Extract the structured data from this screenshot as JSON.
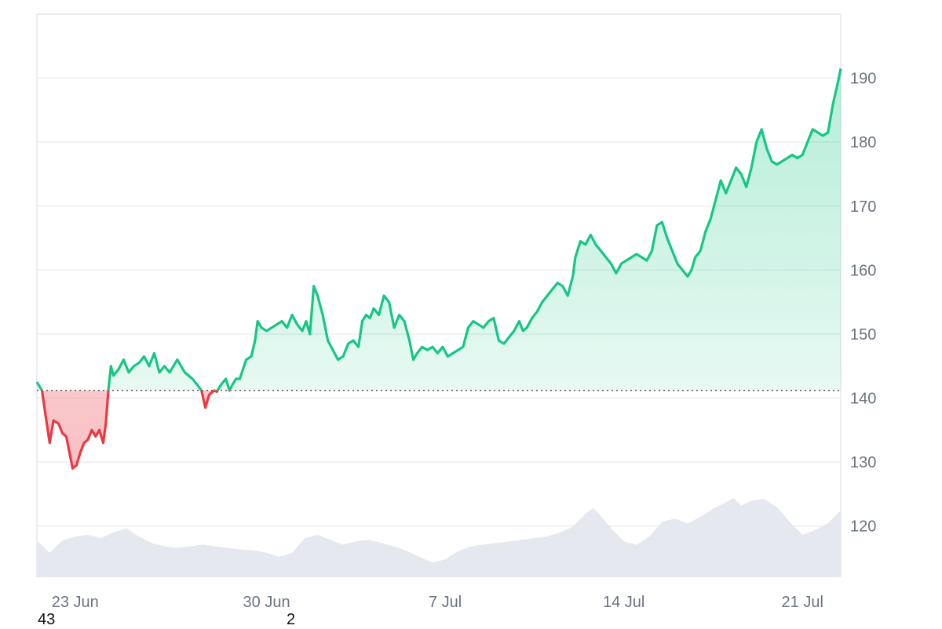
{
  "chart_data": {
    "type": "area",
    "title": "",
    "xlabel": "",
    "ylabel": "",
    "x_start": "21 Jun",
    "x_end": "21 Jul",
    "x_ticks": [
      {
        "label": "23 Jun",
        "day": 1.5
      },
      {
        "label": "30 Jun",
        "day": 9.0
      },
      {
        "label": "7 Jul",
        "day": 16.0
      },
      {
        "label": "14 Jul",
        "day": 23.0
      },
      {
        "label": "21 Jul",
        "day": 30.0
      }
    ],
    "y_ticks": [
      120,
      130,
      140,
      150,
      160,
      170,
      180,
      190
    ],
    "ylim": [
      112,
      200
    ],
    "baseline": 141.2,
    "grid": true,
    "up_color": "#16c784",
    "down_color": "#ea3943",
    "volume_color": "#e5e9ef",
    "series": [
      {
        "values": [
          [
            0.0,
            142.5
          ],
          [
            0.2,
            141.2
          ],
          [
            0.35,
            137
          ],
          [
            0.5,
            133
          ],
          [
            0.65,
            136.5
          ],
          [
            0.85,
            136
          ],
          [
            1.0,
            134.5
          ],
          [
            1.15,
            134
          ],
          [
            1.3,
            131
          ],
          [
            1.4,
            129
          ],
          [
            1.55,
            129.5
          ],
          [
            1.7,
            131.5
          ],
          [
            1.85,
            133
          ],
          [
            2.0,
            133.5
          ],
          [
            2.15,
            135
          ],
          [
            2.3,
            134
          ],
          [
            2.45,
            135
          ],
          [
            2.6,
            133
          ],
          [
            2.7,
            136
          ],
          [
            2.8,
            141.2
          ],
          [
            2.9,
            145
          ],
          [
            3.0,
            143.5
          ],
          [
            3.2,
            144.5
          ],
          [
            3.4,
            146
          ],
          [
            3.6,
            144
          ],
          [
            3.8,
            145
          ],
          [
            4.0,
            145.5
          ],
          [
            4.2,
            146.5
          ],
          [
            4.4,
            145
          ],
          [
            4.6,
            147
          ],
          [
            4.8,
            144
          ],
          [
            5.0,
            145
          ],
          [
            5.2,
            144
          ],
          [
            5.5,
            146
          ],
          [
            5.8,
            144
          ],
          [
            6.1,
            143
          ],
          [
            6.3,
            142
          ],
          [
            6.45,
            141.2
          ],
          [
            6.6,
            138.5
          ],
          [
            6.75,
            140.5
          ],
          [
            6.95,
            141.2
          ],
          [
            7.05,
            141
          ],
          [
            7.2,
            142
          ],
          [
            7.4,
            143
          ],
          [
            7.55,
            141.2
          ],
          [
            7.65,
            142
          ],
          [
            7.8,
            143
          ],
          [
            7.95,
            143
          ],
          [
            8.2,
            146
          ],
          [
            8.4,
            146.5
          ],
          [
            8.55,
            149
          ],
          [
            8.65,
            152
          ],
          [
            8.8,
            151
          ],
          [
            9.0,
            150.5
          ],
          [
            9.2,
            151
          ],
          [
            9.4,
            151.5
          ],
          [
            9.6,
            152
          ],
          [
            9.8,
            151
          ],
          [
            10.0,
            153
          ],
          [
            10.2,
            151.5
          ],
          [
            10.4,
            150.5
          ],
          [
            10.55,
            152
          ],
          [
            10.7,
            150
          ],
          [
            10.85,
            157.5
          ],
          [
            11.0,
            156
          ],
          [
            11.2,
            153
          ],
          [
            11.4,
            149
          ],
          [
            11.6,
            147.5
          ],
          [
            11.8,
            146
          ],
          [
            12.0,
            146.5
          ],
          [
            12.2,
            148.5
          ],
          [
            12.4,
            149
          ],
          [
            12.6,
            148
          ],
          [
            12.75,
            152
          ],
          [
            12.9,
            153
          ],
          [
            13.05,
            152.5
          ],
          [
            13.2,
            154
          ],
          [
            13.4,
            153
          ],
          [
            13.6,
            156
          ],
          [
            13.8,
            155
          ],
          [
            14.0,
            151
          ],
          [
            14.2,
            153
          ],
          [
            14.4,
            152
          ],
          [
            14.6,
            149
          ],
          [
            14.75,
            146
          ],
          [
            14.9,
            147
          ],
          [
            15.1,
            148
          ],
          [
            15.3,
            147.5
          ],
          [
            15.5,
            148
          ],
          [
            15.7,
            147
          ],
          [
            15.9,
            148
          ],
          [
            16.1,
            146.5
          ],
          [
            16.3,
            147
          ],
          [
            16.5,
            147.5
          ],
          [
            16.7,
            148
          ],
          [
            16.9,
            151
          ],
          [
            17.1,
            152
          ],
          [
            17.3,
            151.5
          ],
          [
            17.5,
            151
          ],
          [
            17.7,
            152
          ],
          [
            17.9,
            152.5
          ],
          [
            18.1,
            149
          ],
          [
            18.3,
            148.5
          ],
          [
            18.5,
            149.5
          ],
          [
            18.7,
            150.5
          ],
          [
            18.9,
            152
          ],
          [
            19.05,
            150.5
          ],
          [
            19.2,
            151
          ],
          [
            19.4,
            152.5
          ],
          [
            19.6,
            153.5
          ],
          [
            19.8,
            155
          ],
          [
            20.0,
            156
          ],
          [
            20.2,
            157
          ],
          [
            20.4,
            158
          ],
          [
            20.6,
            157.5
          ],
          [
            20.8,
            156
          ],
          [
            21.0,
            159
          ],
          [
            21.1,
            162
          ],
          [
            21.3,
            164.5
          ],
          [
            21.5,
            164
          ],
          [
            21.7,
            165.5
          ],
          [
            21.9,
            164
          ],
          [
            22.1,
            163
          ],
          [
            22.3,
            162
          ],
          [
            22.5,
            161
          ],
          [
            22.7,
            159.5
          ],
          [
            22.9,
            161
          ],
          [
            23.1,
            161.5
          ],
          [
            23.3,
            162
          ],
          [
            23.5,
            162.5
          ],
          [
            23.7,
            162
          ],
          [
            23.9,
            161.5
          ],
          [
            24.1,
            163
          ],
          [
            24.3,
            167
          ],
          [
            24.5,
            167.5
          ],
          [
            24.7,
            165
          ],
          [
            24.9,
            163
          ],
          [
            25.1,
            161
          ],
          [
            25.3,
            160
          ],
          [
            25.5,
            159
          ],
          [
            25.65,
            160
          ],
          [
            25.8,
            162
          ],
          [
            26.0,
            163
          ],
          [
            26.2,
            166
          ],
          [
            26.4,
            168
          ],
          [
            26.6,
            171
          ],
          [
            26.8,
            174
          ],
          [
            27.0,
            172
          ],
          [
            27.2,
            174
          ],
          [
            27.4,
            176
          ],
          [
            27.6,
            175
          ],
          [
            27.8,
            173
          ],
          [
            28.0,
            176
          ],
          [
            28.2,
            180
          ],
          [
            28.4,
            182
          ],
          [
            28.6,
            179
          ],
          [
            28.8,
            177
          ],
          [
            29.0,
            176.5
          ],
          [
            29.2,
            177
          ],
          [
            29.4,
            177.5
          ],
          [
            29.6,
            178
          ],
          [
            29.8,
            177.5
          ],
          [
            30.0,
            178
          ],
          [
            30.2,
            180
          ],
          [
            30.4,
            182
          ],
          [
            30.6,
            181.5
          ],
          [
            30.8,
            181
          ],
          [
            31.0,
            181.5
          ],
          [
            31.2,
            186
          ],
          [
            31.4,
            189.5
          ],
          [
            31.5,
            191.5
          ]
        ]
      }
    ],
    "volume": [
      [
        0.0,
        0.45
      ],
      [
        0.5,
        0.3
      ],
      [
        1.0,
        0.45
      ],
      [
        1.5,
        0.5
      ],
      [
        2.0,
        0.52
      ],
      [
        2.5,
        0.48
      ],
      [
        3.0,
        0.55
      ],
      [
        3.5,
        0.6
      ],
      [
        4.0,
        0.5
      ],
      [
        4.5,
        0.42
      ],
      [
        5.0,
        0.38
      ],
      [
        5.5,
        0.36
      ],
      [
        6.0,
        0.38
      ],
      [
        6.5,
        0.4
      ],
      [
        7.0,
        0.38
      ],
      [
        7.5,
        0.36
      ],
      [
        8.0,
        0.34
      ],
      [
        8.5,
        0.33
      ],
      [
        9.0,
        0.3
      ],
      [
        9.5,
        0.25
      ],
      [
        10.0,
        0.3
      ],
      [
        10.5,
        0.48
      ],
      [
        11.0,
        0.52
      ],
      [
        11.5,
        0.46
      ],
      [
        12.0,
        0.4
      ],
      [
        12.5,
        0.44
      ],
      [
        13.0,
        0.46
      ],
      [
        13.5,
        0.42
      ],
      [
        14.0,
        0.38
      ],
      [
        14.5,
        0.32
      ],
      [
        15.0,
        0.25
      ],
      [
        15.5,
        0.18
      ],
      [
        16.0,
        0.22
      ],
      [
        16.5,
        0.32
      ],
      [
        17.0,
        0.38
      ],
      [
        17.5,
        0.4
      ],
      [
        18.0,
        0.42
      ],
      [
        18.5,
        0.44
      ],
      [
        19.0,
        0.46
      ],
      [
        19.5,
        0.48
      ],
      [
        20.0,
        0.5
      ],
      [
        20.5,
        0.55
      ],
      [
        21.0,
        0.62
      ],
      [
        21.5,
        0.78
      ],
      [
        21.8,
        0.85
      ],
      [
        22.1,
        0.75
      ],
      [
        22.5,
        0.6
      ],
      [
        23.0,
        0.44
      ],
      [
        23.5,
        0.4
      ],
      [
        24.0,
        0.5
      ],
      [
        24.5,
        0.68
      ],
      [
        25.0,
        0.72
      ],
      [
        25.5,
        0.66
      ],
      [
        26.0,
        0.74
      ],
      [
        26.5,
        0.84
      ],
      [
        27.0,
        0.92
      ],
      [
        27.3,
        0.97
      ],
      [
        27.6,
        0.88
      ],
      [
        28.0,
        0.94
      ],
      [
        28.5,
        0.96
      ],
      [
        29.0,
        0.86
      ],
      [
        29.5,
        0.68
      ],
      [
        30.0,
        0.52
      ],
      [
        30.5,
        0.58
      ],
      [
        31.0,
        0.66
      ],
      [
        31.5,
        0.82
      ]
    ]
  },
  "corner_labels": {
    "left": "43",
    "mid": "2"
  }
}
